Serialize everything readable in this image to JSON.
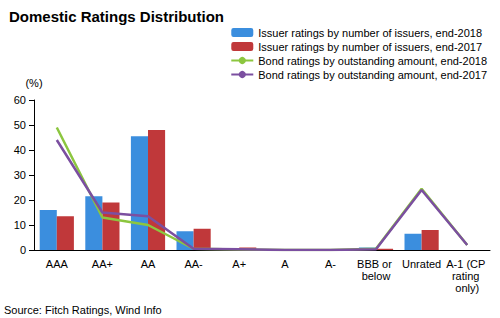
{
  "chart_data": {
    "type": "bar",
    "title": "Domestic Ratings Distribution",
    "ylabel": "(%)",
    "annotation": "Source: Fitch Ratings, Wind Info",
    "categories": [
      "AAA",
      "AA+",
      "AA",
      "AA-",
      "A+",
      "A",
      "A-",
      "BBB or below",
      "Unrated",
      "A-1 (CP rating only)"
    ],
    "series": [
      {
        "name": "Issuer ratings by number of issuers, end-2018",
        "type": "bar",
        "color": "#3b8ede",
        "values": [
          16,
          21.5,
          45.5,
          7.5,
          0.5,
          0,
          0,
          1,
          6.5,
          null
        ]
      },
      {
        "name": "Issuer ratings by number of issuers, end-2017",
        "type": "bar",
        "color": "#c0383a",
        "values": [
          13.5,
          19,
          48,
          8.5,
          1,
          0,
          0,
          0.5,
          8,
          null
        ]
      },
      {
        "name": "Bond ratings by outstanding amount, end-2018",
        "type": "line",
        "color": "#8cc63f",
        "values": [
          49,
          13,
          10,
          0.5,
          0.2,
          0,
          0,
          0.5,
          24.5,
          2
        ]
      },
      {
        "name": "Bond ratings by outstanding amount, end-2017",
        "type": "line",
        "color": "#7b4fa0",
        "values": [
          44,
          15,
          13.5,
          0.5,
          0.3,
          0,
          0,
          0.3,
          24,
          2
        ]
      }
    ],
    "ylim": [
      0,
      60
    ],
    "yticks": [
      0,
      10,
      20,
      30,
      40,
      50,
      60
    ],
    "grid": false,
    "legend": "top right"
  }
}
